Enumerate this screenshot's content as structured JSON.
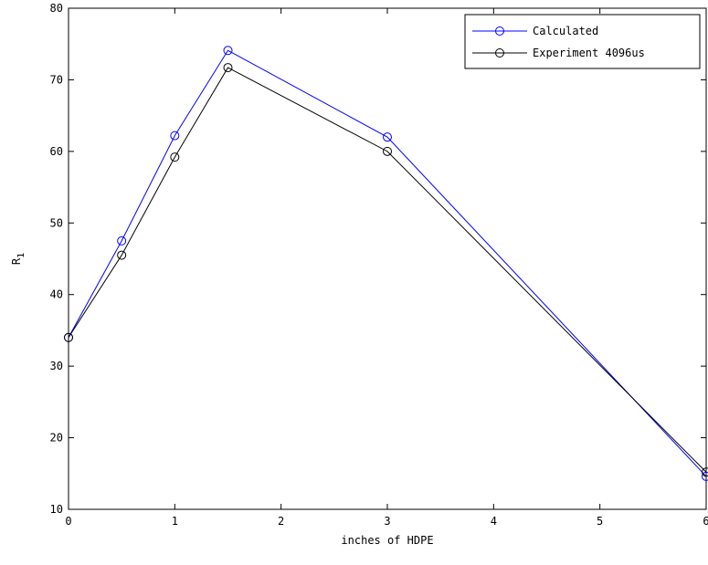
{
  "chart_data": {
    "type": "line",
    "title": "",
    "xlabel": "inches of HDPE",
    "ylabel_main": "R",
    "ylabel_sub": "1",
    "xlim": [
      0,
      6
    ],
    "ylim": [
      10,
      80
    ],
    "xticks": [
      0,
      1,
      2,
      3,
      4,
      5,
      6
    ],
    "yticks": [
      10,
      20,
      30,
      40,
      50,
      60,
      70,
      80
    ],
    "grid": false,
    "legend_position": "top-right",
    "series": [
      {
        "name": "Calculated",
        "color": "#0000ff",
        "marker": "circle",
        "x": [
          0,
          0.5,
          1,
          1.5,
          3,
          6
        ],
        "y": [
          34.0,
          47.5,
          62.2,
          74.1,
          62.0,
          14.6
        ]
      },
      {
        "name": "Experiment 4096us",
        "color": "#000000",
        "marker": "circle",
        "x": [
          0,
          0.5,
          1,
          1.5,
          3,
          6
        ],
        "y": [
          34.0,
          45.5,
          59.2,
          71.7,
          60.0,
          15.2
        ]
      }
    ]
  }
}
